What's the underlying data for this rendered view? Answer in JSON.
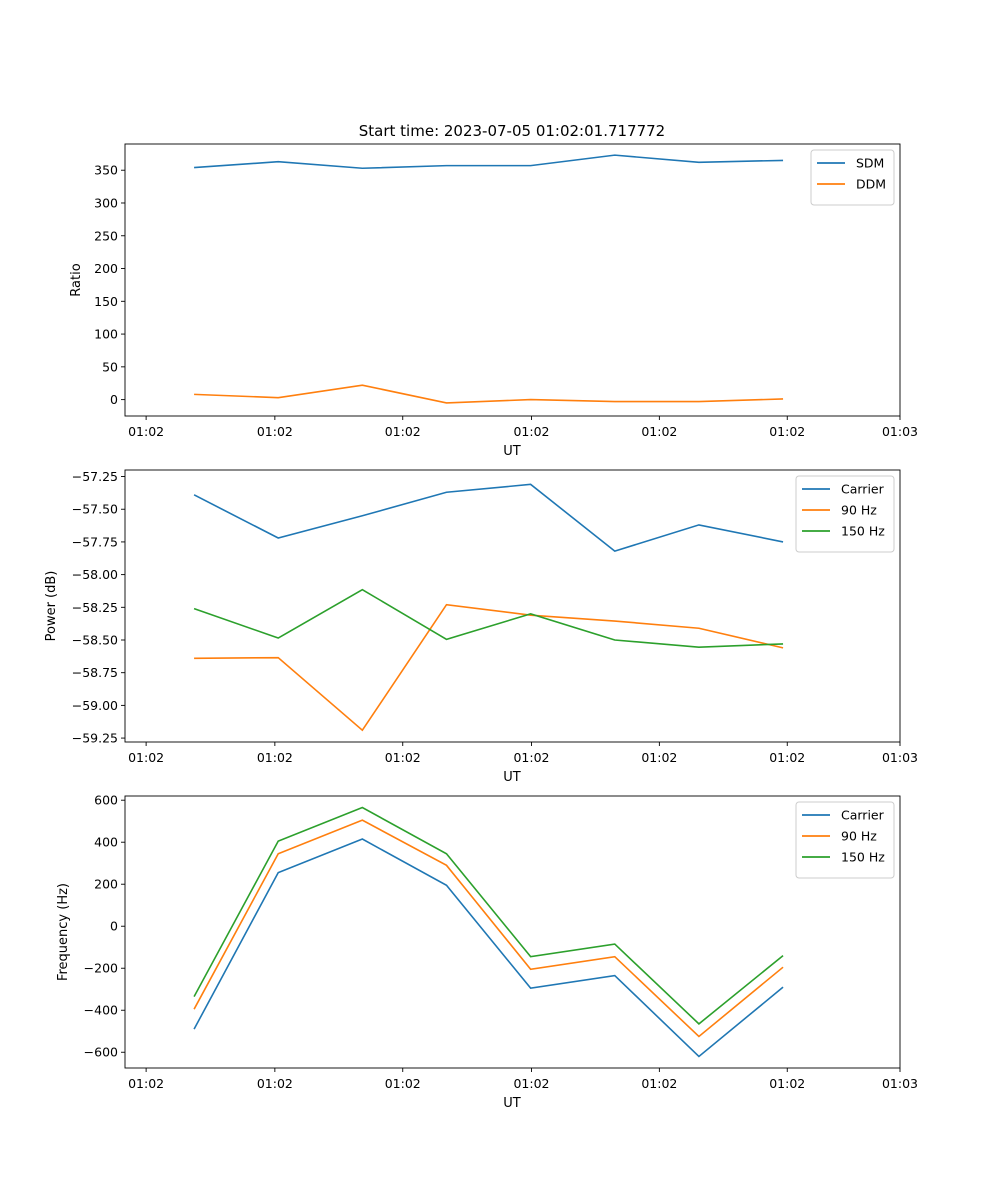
{
  "figure": {
    "title": "Start time: 2023-07-05 01:02:01.717772"
  },
  "chart_data": [
    {
      "type": "line",
      "xlabel": "UT",
      "ylabel": "Ratio",
      "x": [
        1,
        2,
        3,
        4,
        5,
        6,
        7,
        8
      ],
      "xlim": [
        0.179,
        9.39
      ],
      "xticks": [
        0.43,
        1.96,
        3.48,
        5.01,
        6.53,
        8.05,
        9.39
      ],
      "xtick_labels": [
        "01:02",
        "01:02",
        "01:02",
        "01:02",
        "01:02",
        "01:02",
        "01:03"
      ],
      "ylim": [
        -25,
        390
      ],
      "yticks": [
        0,
        50,
        100,
        150,
        200,
        250,
        300,
        350
      ],
      "ytick_labels": [
        "0",
        "50",
        "100",
        "150",
        "200",
        "250",
        "300",
        "350"
      ],
      "legend_position": "top-right",
      "series": [
        {
          "name": "SDM",
          "color": "#1f77b4",
          "values": [
            354,
            363,
            353,
            357,
            357,
            373,
            362,
            365
          ]
        },
        {
          "name": "DDM",
          "color": "#ff7f0e",
          "values": [
            8,
            3,
            22,
            -5,
            0,
            -3,
            -3,
            1
          ]
        }
      ]
    },
    {
      "type": "line",
      "xlabel": "UT",
      "ylabel": "Power (dB)",
      "x": [
        1,
        2,
        3,
        4,
        5,
        6,
        7,
        8
      ],
      "xlim": [
        0.179,
        9.39
      ],
      "xticks": [
        0.43,
        1.96,
        3.48,
        5.01,
        6.53,
        8.05,
        9.39
      ],
      "xtick_labels": [
        "01:02",
        "01:02",
        "01:02",
        "01:02",
        "01:02",
        "01:02",
        "01:03"
      ],
      "ylim": [
        -59.28,
        -57.2
      ],
      "yticks": [
        -57.25,
        -57.5,
        -57.75,
        -58.0,
        -58.25,
        -58.5,
        -58.75,
        -59.0,
        -59.25
      ],
      "ytick_labels": [
        "−57.25",
        "−57.50",
        "−57.75",
        "−58.00",
        "−58.25",
        "−58.50",
        "−58.75",
        "−59.00",
        "−59.25"
      ],
      "legend_position": "top-right",
      "series": [
        {
          "name": "Carrier",
          "color": "#1f77b4",
          "values": [
            -57.39,
            -57.72,
            -57.55,
            -57.37,
            -57.31,
            -57.82,
            -57.62,
            -57.75
          ]
        },
        {
          "name": "90 Hz",
          "color": "#ff7f0e",
          "values": [
            -58.64,
            -58.635,
            -59.19,
            -58.23,
            -58.31,
            -58.355,
            -58.41,
            -58.56
          ]
        },
        {
          "name": "150 Hz",
          "color": "#2ca02c",
          "values": [
            -58.26,
            -58.485,
            -58.115,
            -58.495,
            -58.3,
            -58.5,
            -58.555,
            -58.53
          ]
        }
      ]
    },
    {
      "type": "line",
      "xlabel": "UT",
      "ylabel": "Frequency (Hz)",
      "x": [
        1,
        2,
        3,
        4,
        5,
        6,
        7,
        8
      ],
      "xlim": [
        0.179,
        9.39
      ],
      "xticks": [
        0.43,
        1.96,
        3.48,
        5.01,
        6.53,
        8.05,
        9.39
      ],
      "xtick_labels": [
        "01:02",
        "01:02",
        "01:02",
        "01:02",
        "01:02",
        "01:02",
        "01:03"
      ],
      "ylim": [
        -675,
        620
      ],
      "yticks": [
        -600,
        -400,
        -200,
        0,
        200,
        400,
        600
      ],
      "ytick_labels": [
        "−600",
        "−400",
        "−200",
        "0",
        "200",
        "400",
        "600"
      ],
      "legend_position": "top-right",
      "series": [
        {
          "name": "Carrier",
          "color": "#1f77b4",
          "values": [
            -490,
            255,
            415,
            195,
            -295,
            -235,
            -620,
            -290
          ]
        },
        {
          "name": "90 Hz",
          "color": "#ff7f0e",
          "values": [
            -395,
            345,
            505,
            290,
            -205,
            -145,
            -525,
            -195
          ]
        },
        {
          "name": "150 Hz",
          "color": "#2ca02c",
          "values": [
            -335,
            405,
            565,
            345,
            -145,
            -85,
            -465,
            -140
          ]
        }
      ]
    }
  ]
}
